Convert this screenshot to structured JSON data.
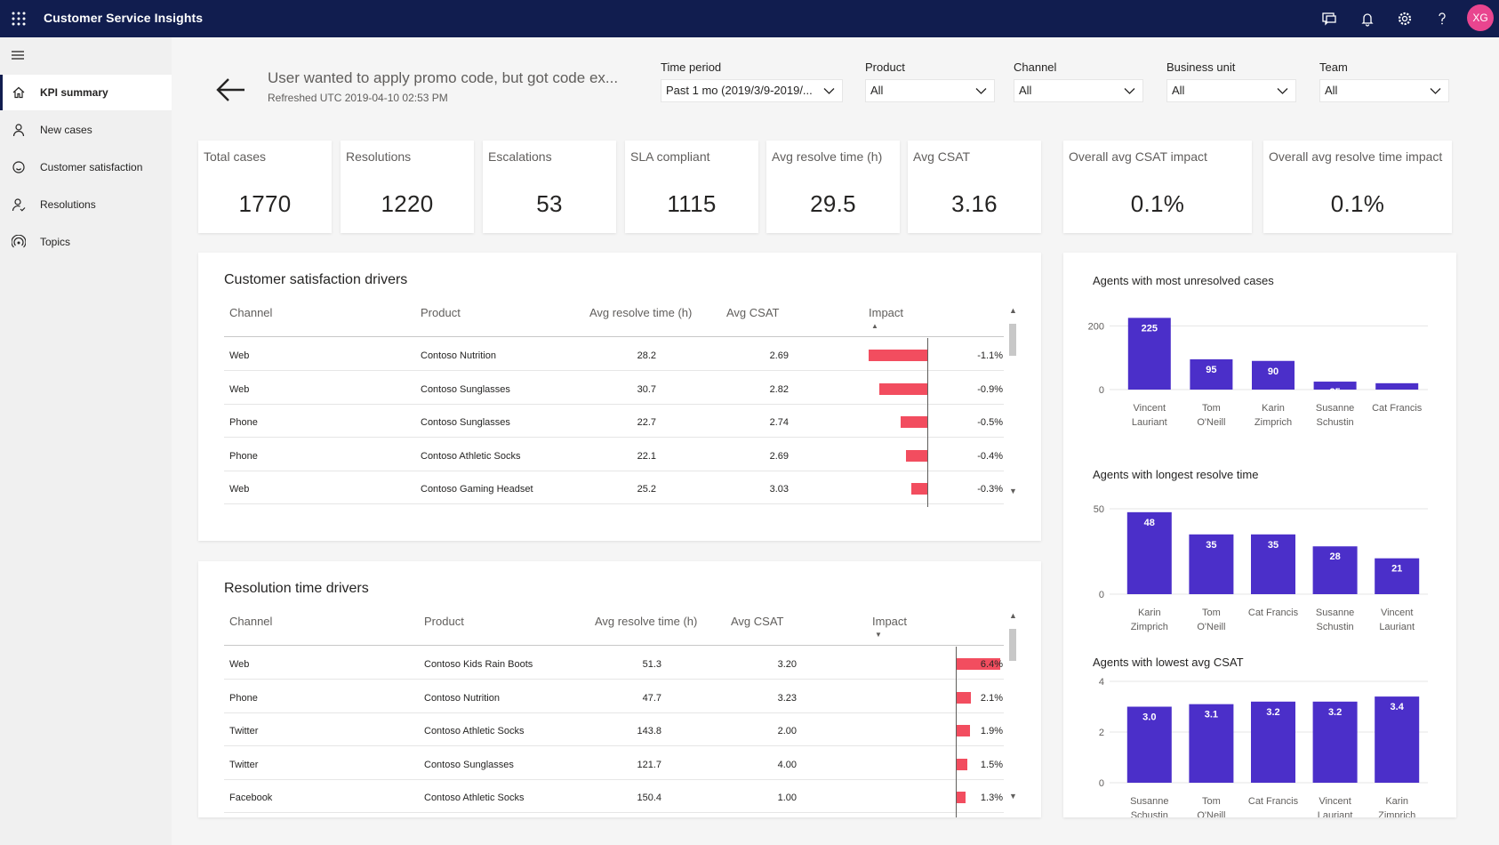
{
  "app": {
    "title": "Customer Service Insights",
    "avatar": "XG"
  },
  "sidebar": {
    "items": [
      {
        "label": "KPI summary",
        "icon": "home-icon",
        "active": true
      },
      {
        "label": "New cases",
        "icon": "person-icon"
      },
      {
        "label": "Customer satisfaction",
        "icon": "satisfaction-icon"
      },
      {
        "label": "Resolutions",
        "icon": "person-check-icon"
      },
      {
        "label": "Topics",
        "icon": "topics-icon"
      }
    ]
  },
  "header": {
    "title": "User wanted to apply promo code, but got code ex...",
    "refreshed": "Refreshed UTC 2019-04-10 02:53 PM"
  },
  "filters": [
    {
      "label": "Time period",
      "value": "Past 1 mo (2019/3/9-2019/..."
    },
    {
      "label": "Product",
      "value": "All"
    },
    {
      "label": "Channel",
      "value": "All"
    },
    {
      "label": "Business unit",
      "value": "All"
    },
    {
      "label": "Team",
      "value": "All"
    }
  ],
  "kpis": [
    {
      "label": "Total cases",
      "value": "1770"
    },
    {
      "label": "Resolutions",
      "value": "1220"
    },
    {
      "label": "Escalations",
      "value": "53"
    },
    {
      "label": "SLA compliant",
      "value": "1115"
    },
    {
      "label": "Avg resolve time (h)",
      "value": "29.5"
    },
    {
      "label": "Avg CSAT",
      "value": "3.16"
    },
    {
      "label": "Overall avg CSAT impact",
      "value": "0.1%"
    },
    {
      "label": "Overall avg resolve time impact",
      "value": "0.1%"
    }
  ],
  "csat_table": {
    "title": "Customer satisfaction drivers",
    "headers": {
      "channel": "Channel",
      "product": "Product",
      "resolve": "Avg resolve time (h)",
      "csat": "Avg CSAT",
      "impact": "Impact"
    },
    "rows": [
      {
        "channel": "Web",
        "product": "Contoso Nutrition",
        "resolve": "28.2",
        "csat": "2.69",
        "impact": "-1.1%",
        "impact_value": -1.1
      },
      {
        "channel": "Web",
        "product": "Contoso Sunglasses",
        "resolve": "30.7",
        "csat": "2.82",
        "impact": "-0.9%",
        "impact_value": -0.9
      },
      {
        "channel": "Phone",
        "product": "Contoso Sunglasses",
        "resolve": "22.7",
        "csat": "2.74",
        "impact": "-0.5%",
        "impact_value": -0.5
      },
      {
        "channel": "Phone",
        "product": "Contoso Athletic Socks",
        "resolve": "22.1",
        "csat": "2.69",
        "impact": "-0.4%",
        "impact_value": -0.4
      },
      {
        "channel": "Web",
        "product": "Contoso Gaming Headset",
        "resolve": "25.2",
        "csat": "3.03",
        "impact": "-0.3%",
        "impact_value": -0.3
      }
    ]
  },
  "resolution_table": {
    "title": "Resolution time drivers",
    "headers": {
      "channel": "Channel",
      "product": "Product",
      "resolve": "Avg resolve time (h)",
      "csat": "Avg CSAT",
      "impact": "Impact"
    },
    "rows": [
      {
        "channel": "Web",
        "product": "Contoso Kids Rain Boots",
        "resolve": "51.3",
        "csat": "3.20",
        "impact": "6.4%",
        "impact_value": 6.4
      },
      {
        "channel": "Phone",
        "product": "Contoso Nutrition",
        "resolve": "47.7",
        "csat": "3.23",
        "impact": "2.1%",
        "impact_value": 2.1
      },
      {
        "channel": "Twitter",
        "product": "Contoso Athletic Socks",
        "resolve": "143.8",
        "csat": "2.00",
        "impact": "1.9%",
        "impact_value": 1.9
      },
      {
        "channel": "Twitter",
        "product": "Contoso Sunglasses",
        "resolve": "121.7",
        "csat": "4.00",
        "impact": "1.5%",
        "impact_value": 1.5
      },
      {
        "channel": "Facebook",
        "product": "Contoso Athletic Socks",
        "resolve": "150.4",
        "csat": "1.00",
        "impact": "1.3%",
        "impact_value": 1.3
      }
    ]
  },
  "chart_data": [
    {
      "type": "bar",
      "title": "Agents with most unresolved cases",
      "categories": [
        [
          "Vincent",
          "Lauriant"
        ],
        [
          "Tom",
          "O'Neill"
        ],
        [
          "Karin",
          "Zimprich"
        ],
        [
          "Susanne",
          "Schustin"
        ],
        [
          "Cat Francis"
        ]
      ],
      "values": [
        225,
        95,
        90,
        25,
        20
      ],
      "labels": [
        "225",
        "95",
        "90",
        "25",
        "20"
      ],
      "yticks": [
        "200",
        "0"
      ],
      "ylim": [
        0,
        240
      ],
      "color": "#4b2fc9"
    },
    {
      "type": "bar",
      "title": "Agents with longest resolve time",
      "categories": [
        [
          "Karin",
          "Zimprich"
        ],
        [
          "Tom",
          "O'Neill"
        ],
        [
          "Cat Francis"
        ],
        [
          "Susanne",
          "Schustin"
        ],
        [
          "Vincent",
          "Lauriant"
        ]
      ],
      "values": [
        48,
        35,
        35,
        28,
        21
      ],
      "labels": [
        "48",
        "35",
        "35",
        "28",
        "21"
      ],
      "yticks": [
        "50",
        "0"
      ],
      "ylim": [
        0,
        50
      ],
      "color": "#4b2fc9"
    },
    {
      "type": "bar",
      "title": "Agents with lowest avg CSAT",
      "categories": [
        [
          "Susanne",
          "Schustin"
        ],
        [
          "Tom",
          "O'Neill"
        ],
        [
          "Cat Francis"
        ],
        [
          "Vincent",
          "Lauriant"
        ],
        [
          "Karin",
          "Zimprich"
        ]
      ],
      "values": [
        3.0,
        3.1,
        3.2,
        3.2,
        3.4
      ],
      "labels": [
        "3.0",
        "3.1",
        "3.2",
        "3.2",
        "3.4"
      ],
      "yticks": [
        "4",
        "2",
        "0"
      ],
      "ylim": [
        0,
        4
      ],
      "color": "#4b2fc9"
    }
  ],
  "colors": {
    "topbar": "#111d4f",
    "bar": "#4b2fc9",
    "impact": "#f24d5f"
  }
}
